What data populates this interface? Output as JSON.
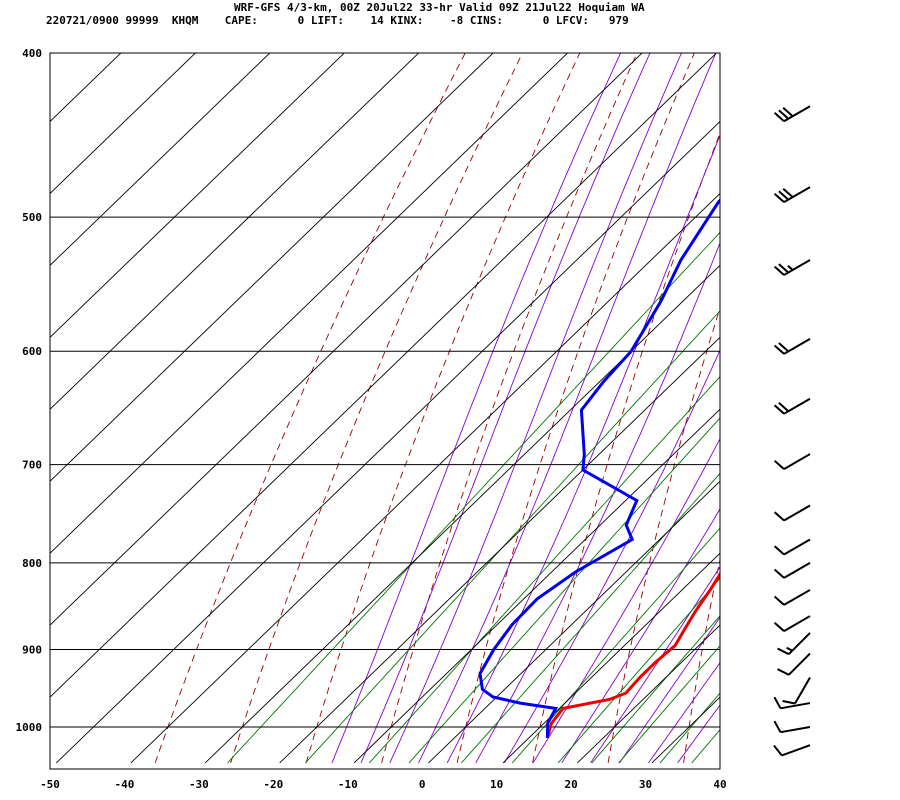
{
  "header": {
    "title": "WRF-GFS 4/3-km, 00Z 20Jul22 33-hr Valid 09Z 21Jul22 Hoquiam WA",
    "line2": "220721/0900 99999  KHQM    CAPE:      0 LIFT:    14 KINX:    -8 CINS:      0 LFCV:   979"
  },
  "chart_data": {
    "type": "line",
    "chart_kind": "skew-T log-p sounding",
    "title": "WRF-GFS 4/3-km, 00Z 20Jul22 33-hr Valid 09Z 21Jul22 Hoquiam WA",
    "xlabel": "",
    "ylabel": "",
    "x_ticks": [
      "-50",
      "-40",
      "-30",
      "-20",
      "-10",
      "0",
      "10",
      "20",
      "30",
      "40"
    ],
    "y_ticks": [
      "400",
      "500",
      "600",
      "700",
      "800",
      "900",
      "1000"
    ],
    "xlim": [
      -50,
      40
    ],
    "ylim_hPa": [
      1050,
      400
    ],
    "y_scale": "log",
    "grid": true,
    "colors": {
      "temperature": "#ee0000",
      "dewpoint": "#0000ee",
      "isotherm_grid": "#000000",
      "dry_adiabat": "#990000",
      "moist_adiabat": "#8800cc",
      "mixing_ratio": "#007700"
    },
    "series": [
      {
        "points": [
          [
            1015,
            12.5
          ],
          [
            995,
            11
          ],
          [
            975,
            10.5
          ],
          [
            963,
            15.5
          ],
          [
            955,
            16.8
          ],
          [
            935,
            16.5
          ],
          [
            915,
            16.5
          ],
          [
            895,
            16.8
          ],
          [
            875,
            15.8
          ],
          [
            855,
            14.8
          ],
          [
            830,
            13.8
          ],
          [
            810,
            12.8
          ],
          [
            785,
            11.2
          ],
          [
            760,
            9.2
          ],
          [
            730,
            7.2
          ],
          [
            700,
            6.0
          ],
          [
            675,
            4.8
          ],
          [
            650,
            3.8
          ],
          [
            625,
            2.0
          ],
          [
            600,
            0.0
          ],
          [
            550,
            -6.0
          ],
          [
            500,
            -12.5
          ],
          [
            450,
            -19.0
          ],
          [
            430,
            -21.0
          ]
        ],
        "color": "#ee0000"
      },
      {
        "points": [
          [
            1015,
            12.5
          ],
          [
            995,
            10.5
          ],
          [
            975,
            9.5
          ],
          [
            968,
            4
          ],
          [
            960,
            -0.5
          ],
          [
            950,
            -3
          ],
          [
            930,
            -5.5
          ],
          [
            900,
            -7
          ],
          [
            870,
            -8
          ],
          [
            840,
            -8.2
          ],
          [
            810,
            -6.8
          ],
          [
            775,
            -3.7
          ],
          [
            760,
            -6.5
          ],
          [
            735,
            -8.5
          ],
          [
            705,
            -20
          ],
          [
            690,
            -22
          ],
          [
            650,
            -28.5
          ],
          [
            625,
            -29.5
          ],
          [
            600,
            -30
          ],
          [
            560,
            -33
          ],
          [
            530,
            -36
          ],
          [
            490,
            -39
          ],
          [
            460,
            -40
          ],
          [
            430,
            -37.5
          ]
        ],
        "color": "#0000ee"
      }
    ],
    "wind_barbs": [
      {
        "pressure": 430,
        "direction": 240,
        "speed": 30
      },
      {
        "pressure": 480,
        "direction": 240,
        "speed": 30
      },
      {
        "pressure": 530,
        "direction": 240,
        "speed": 25
      },
      {
        "pressure": 590,
        "direction": 240,
        "speed": 20
      },
      {
        "pressure": 640,
        "direction": 240,
        "speed": 20
      },
      {
        "pressure": 690,
        "direction": 240,
        "speed": 10
      },
      {
        "pressure": 740,
        "direction": 240,
        "speed": 10
      },
      {
        "pressure": 775,
        "direction": 240,
        "speed": 10
      },
      {
        "pressure": 800,
        "direction": 240,
        "speed": 10
      },
      {
        "pressure": 830,
        "direction": 240,
        "speed": 10
      },
      {
        "pressure": 860,
        "direction": 240,
        "speed": 10
      },
      {
        "pressure": 880,
        "direction": 225,
        "speed": 15
      },
      {
        "pressure": 905,
        "direction": 225,
        "speed": 10
      },
      {
        "pressure": 935,
        "direction": 210,
        "speed": 10
      },
      {
        "pressure": 968,
        "direction": 260,
        "speed": 10
      },
      {
        "pressure": 1000,
        "direction": 260,
        "speed": 10
      },
      {
        "pressure": 1025,
        "direction": 250,
        "speed": 10
      }
    ]
  }
}
